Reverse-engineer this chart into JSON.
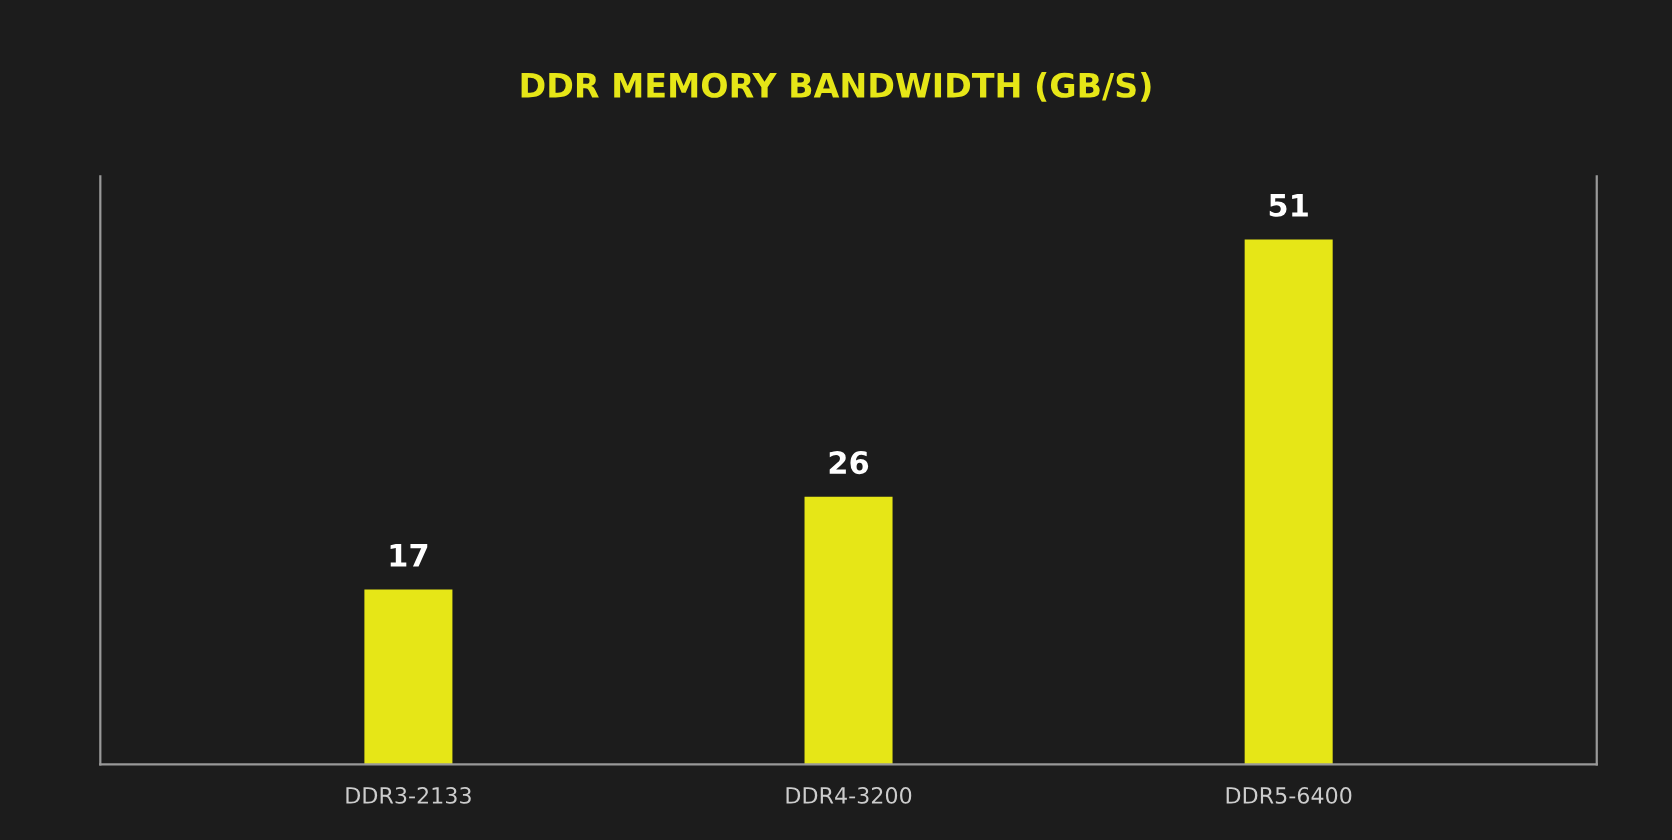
{
  "chart_data": {
    "type": "bar",
    "title": "DDR MEMORY BANDWIDTH (GB/S)",
    "categories": [
      "DDR3-2133",
      "DDR4-3200",
      "DDR5-6400"
    ],
    "values": [
      17,
      26,
      51
    ],
    "color": "#e6e617",
    "data_labels": true,
    "grid": false,
    "legend": false,
    "tick_labels": "x"
  }
}
